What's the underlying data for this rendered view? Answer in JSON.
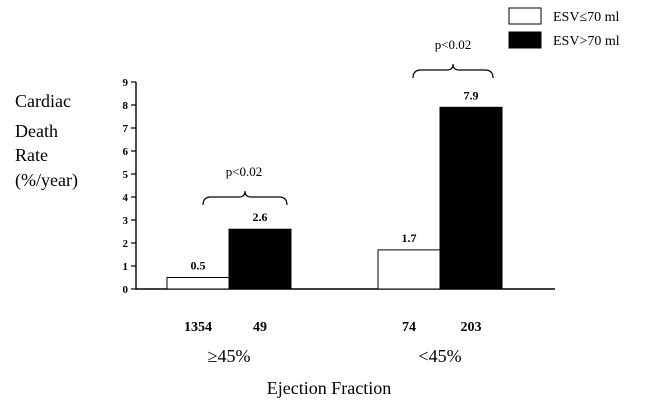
{
  "chart_data": {
    "type": "bar",
    "ylabel_lines": [
      "Cardiac",
      "Death",
      "Rate",
      "(%/year)"
    ],
    "xlabel": "Ejection Fraction",
    "ylim": [
      0,
      9
    ],
    "yticks": [
      "0",
      "1",
      "2",
      "3",
      "4",
      "5",
      "6",
      "7",
      "8",
      "9"
    ],
    "grid": false,
    "legend_position": "top-right",
    "categories": [
      "≥45%",
      "<45%"
    ],
    "series": [
      {
        "name": "ESV≤70 ml",
        "color": "#ffffff",
        "values": [
          0.5,
          1.7
        ],
        "value_labels": [
          "0.5",
          "1.7"
        ],
        "n": [
          "1354",
          "74"
        ]
      },
      {
        "name": "ESV>70 ml",
        "color": "#000000",
        "values": [
          2.6,
          7.9
        ],
        "value_labels": [
          "2.6",
          "7.9"
        ],
        "n": [
          "49",
          "203"
        ]
      }
    ],
    "annotations": [
      "p<0.02",
      "p<0.02"
    ]
  }
}
